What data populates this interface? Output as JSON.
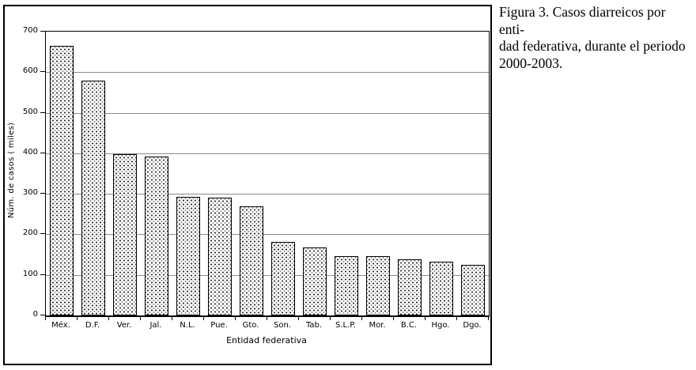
{
  "figure": {
    "caption": "Figura 3. Casos diarreicos por enti-\ndad federativa, durante el periodo\n2000-2003."
  },
  "chart_data": {
    "type": "bar",
    "title": "",
    "xlabel": "Entidad federativa",
    "ylabel": "Núm. de casos ( miles)",
    "categories": [
      "Méx.",
      "D.F.",
      "Ver.",
      "Jal.",
      "N.L.",
      "Pue.",
      "Gto.",
      "Son.",
      "Tab.",
      "S.L.P.",
      "Mor.",
      "B.C.",
      "Hgo.",
      "Dgo."
    ],
    "values": [
      665,
      580,
      398,
      392,
      292,
      290,
      270,
      182,
      168,
      146,
      146,
      138,
      133,
      124
    ],
    "ylim": [
      0,
      700
    ],
    "yticks": [
      0,
      100,
      200,
      300,
      400,
      500,
      600,
      700
    ],
    "grid": true,
    "legend": "none",
    "bar_fill_pattern": "dotted-stipple",
    "colors": {
      "background": "#ffffff",
      "bar_border": "#000000",
      "bar_dot_dark": "#1c1c1c",
      "bar_dot_light": "#8e8e8e",
      "gridline": "#8c8c8c",
      "axis": "#000000",
      "text": "#000000",
      "frame_border": "#000000"
    }
  }
}
